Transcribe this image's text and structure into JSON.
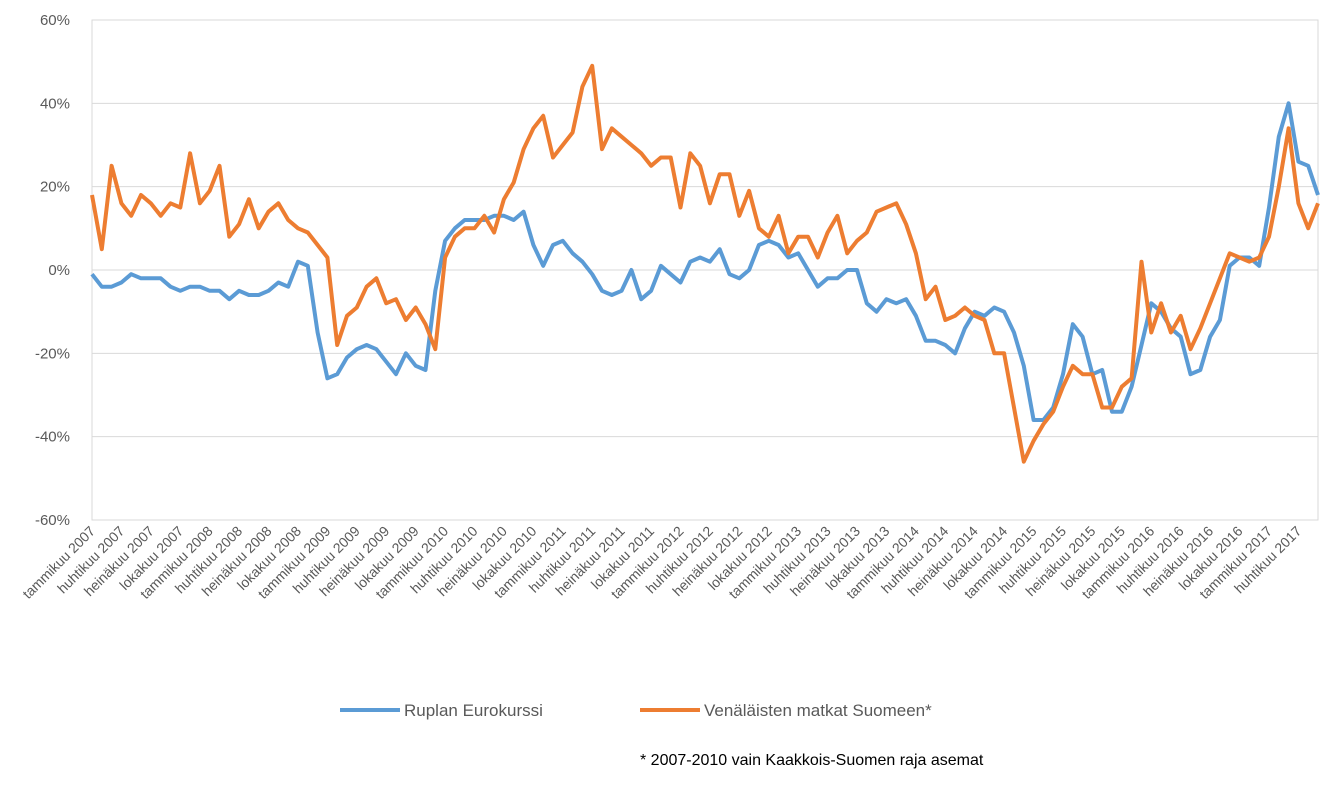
{
  "chart_data": {
    "type": "line",
    "categories": [
      "tammikuu 2007",
      null,
      null,
      "huhtikuu 2007",
      null,
      null,
      "heinäkuu 2007",
      null,
      null,
      "lokakuu 2007",
      null,
      null,
      "tammikuu 2008",
      null,
      null,
      "huhtikuu 2008",
      null,
      null,
      "heinäkuu 2008",
      null,
      null,
      "lokakuu 2008",
      null,
      null,
      "tammikuu 2009",
      null,
      null,
      "huhtikuu 2009",
      null,
      null,
      "heinäkuu 2009",
      null,
      null,
      "lokakuu 2009",
      null,
      null,
      "tammikuu 2010",
      null,
      null,
      "huhtikuu 2010",
      null,
      null,
      "heinäkuu 2010",
      null,
      null,
      "lokakuu 2010",
      null,
      null,
      "tammikuu 2011",
      null,
      null,
      "huhtikuu 2011",
      null,
      null,
      "heinäkuu 2011",
      null,
      null,
      "lokakuu 2011",
      null,
      null,
      "tammikuu 2012",
      null,
      null,
      "huhtikuu 2012",
      null,
      null,
      "heinäkuu 2012",
      null,
      null,
      "lokakuu 2012",
      null,
      null,
      "tammikuu 2013",
      null,
      null,
      "huhtikuu 2013",
      null,
      null,
      "heinäkuu 2013",
      null,
      null,
      "lokakuu 2013",
      null,
      null,
      "tammikuu 2014",
      null,
      null,
      "huhtikuu 2014",
      null,
      null,
      "heinäkuu 2014",
      null,
      null,
      "lokakuu 2014",
      null,
      null,
      "tammikuu 2015",
      null,
      null,
      "huhtikuu 2015",
      null,
      null,
      "heinäkuu 2015",
      null,
      null,
      "lokakuu 2015",
      null,
      null,
      "tammikuu 2016",
      null,
      null,
      "huhtikuu 2016",
      null,
      null,
      "heinäkuu 2016",
      null,
      null,
      "lokakuu 2016",
      null,
      null,
      "tammikuu 2017",
      null,
      null,
      "huhtikuu 2017",
      null,
      null
    ],
    "series": [
      {
        "name": "Ruplan Eurokurssi",
        "color": "#5b9bd5",
        "values": [
          -1,
          -4,
          -4,
          -3,
          -1,
          -2,
          -2,
          -2,
          -4,
          -5,
          -4,
          -4,
          -5,
          -5,
          -7,
          -5,
          -6,
          -6,
          -5,
          -3,
          -4,
          2,
          1,
          -15,
          -26,
          -25,
          -21,
          -19,
          -18,
          -19,
          -22,
          -25,
          -20,
          -23,
          -24,
          -5,
          7,
          10,
          12,
          12,
          12,
          13,
          13,
          12,
          14,
          6,
          1,
          6,
          7,
          4,
          2,
          -1,
          -5,
          -6,
          -5,
          0,
          -7,
          -5,
          1,
          -1,
          -3,
          2,
          3,
          2,
          5,
          -1,
          -2,
          0,
          6,
          7,
          6,
          3,
          4,
          0,
          -4,
          -2,
          -2,
          0,
          0,
          -8,
          -10,
          -7,
          -8,
          -7,
          -11,
          -17,
          -17,
          -18,
          -20,
          -14,
          -10,
          -11,
          -9,
          -10,
          -15,
          -23,
          -36,
          -36,
          -33,
          -25,
          -13,
          -16,
          -25,
          -24,
          -34,
          -34,
          -28,
          -18,
          -8,
          -10,
          -14,
          -16,
          -25,
          -24,
          -16,
          -12,
          1,
          3,
          3,
          1,
          15,
          32,
          40,
          26,
          25,
          18
        ]
      },
      {
        "name": "Venäläisten matkat Suomeen*",
        "color": "#ed7d31",
        "values": [
          18,
          5,
          25,
          16,
          13,
          18,
          16,
          13,
          16,
          15,
          28,
          16,
          19,
          25,
          8,
          11,
          17,
          10,
          14,
          16,
          12,
          10,
          9,
          6,
          3,
          -18,
          -11,
          -9,
          -4,
          -2,
          -8,
          -7,
          -12,
          -9,
          -13,
          -19,
          3,
          8,
          10,
          10,
          13,
          9,
          17,
          21,
          29,
          34,
          37,
          27,
          30,
          33,
          44,
          49,
          29,
          34,
          32,
          30,
          28,
          25,
          27,
          27,
          15,
          28,
          25,
          16,
          23,
          23,
          13,
          19,
          10,
          8,
          13,
          4,
          8,
          8,
          3,
          9,
          13,
          4,
          7,
          9,
          14,
          15,
          16,
          11,
          4,
          -7,
          -4,
          -12,
          -11,
          -9,
          -11,
          -12,
          -20,
          -20,
          -33,
          -46,
          -41,
          -37,
          -34,
          -28,
          -23,
          -25,
          -25,
          -33,
          -33,
          -28,
          -26,
          2,
          -15,
          -8,
          -15,
          -11,
          -19,
          -14,
          -8,
          -2,
          4,
          3,
          2,
          3,
          8,
          20,
          34,
          16,
          10,
          16
        ]
      }
    ],
    "ylim": [
      -60,
      60
    ],
    "yticks": [
      {
        "value": -60,
        "label": "-60%"
      },
      {
        "value": -40,
        "label": "-40%"
      },
      {
        "value": -20,
        "label": "-20%"
      },
      {
        "value": 0,
        "label": "0%"
      },
      {
        "value": 20,
        "label": "20%"
      },
      {
        "value": 40,
        "label": "40%"
      },
      {
        "value": 60,
        "label": "60%"
      }
    ],
    "grid": true,
    "legend": "bottom",
    "annotations": [
      "* 2007-2010 vain Kaakkois-Suomen raja asemat"
    ]
  }
}
